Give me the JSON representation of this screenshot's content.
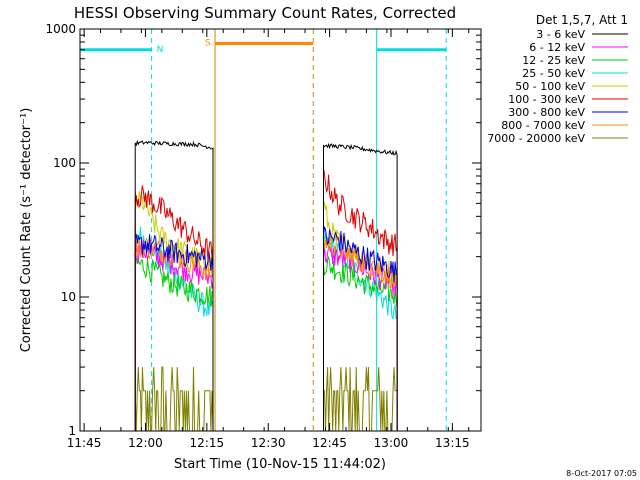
{
  "chart_data": {
    "type": "line",
    "title": "HESSI Observing Summary Count Rates, Corrected",
    "xlabel": "Start Time (10-Nov-15 11:44:02)",
    "ylabel": "Corrected Count Rate (s⁻¹ detector⁻¹)",
    "yscale": "log",
    "ylim": [
      1,
      1000
    ],
    "xlim_minutes": [
      0,
      98
    ],
    "x_ticks": [
      {
        "label": "11:45",
        "minute": 1
      },
      {
        "label": "12:00",
        "minute": 16
      },
      {
        "label": "12:15",
        "minute": 31
      },
      {
        "label": "12:30",
        "minute": 46
      },
      {
        "label": "12:45",
        "minute": 61
      },
      {
        "label": "13:00",
        "minute": 76
      },
      {
        "label": "13:15",
        "minute": 91
      }
    ],
    "y_ticks": [
      {
        "label": "1",
        "value": 1
      },
      {
        "label": "10",
        "value": 10
      },
      {
        "label": "100",
        "value": 100
      },
      {
        "label": "1000",
        "value": 1000
      }
    ],
    "legend": {
      "title": "Det 1,5,7, Att 1",
      "position": "right",
      "entries": [
        {
          "label": "3 - 6 keV",
          "color": "#000000"
        },
        {
          "label": "6 - 12 keV",
          "color": "#ff00ff"
        },
        {
          "label": "12 - 25 keV",
          "color": "#00cc00"
        },
        {
          "label": "25 - 50 keV",
          "color": "#00dddd"
        },
        {
          "label": "50 - 100 keV",
          "color": "#cccc00"
        },
        {
          "label": "100 - 300 keV",
          "color": "#dd0000"
        },
        {
          "label": "300 - 800 keV",
          "color": "#0000dd"
        },
        {
          "label": "800 - 7000 keV",
          "color": "#ff8800"
        },
        {
          "label": "7000 - 20000 keV",
          "color": "#808000"
        }
      ]
    },
    "orbit_flags": [
      {
        "label": "N",
        "color": "#00dddd",
        "start_minute": 0,
        "end_minute": 17.5,
        "y": 700
      },
      {
        "label": "S",
        "color": "#ff8800",
        "start_minute": 33,
        "end_minute": 57,
        "y": 780
      },
      {
        "label": "",
        "color": "#00dddd",
        "start_minute": 72.5,
        "end_minute": 89.5,
        "y": 700
      }
    ],
    "vertical_markers": [
      {
        "minute": 0,
        "color": "#00dddd",
        "style": "solid"
      },
      {
        "minute": 17.5,
        "color": "#00dddd",
        "style": "dashed"
      },
      {
        "minute": 33,
        "color": "#cc8800",
        "style": "solid"
      },
      {
        "minute": 57,
        "color": "#cc8800",
        "style": "dashed"
      },
      {
        "minute": 72.5,
        "color": "#00dddd",
        "style": "solid"
      },
      {
        "minute": 89.5,
        "color": "#00dddd",
        "style": "dashed"
      }
    ],
    "intervals": [
      {
        "start_minute": 13.5,
        "end_minute": 32.5
      },
      {
        "start_minute": 59.5,
        "end_minute": 77.5
      }
    ],
    "series": [
      {
        "name": "3 - 6 keV",
        "color": "#000000",
        "points": [
          [
            13.5,
            140
          ],
          [
            16,
            142
          ],
          [
            20,
            140
          ],
          [
            24,
            139
          ],
          [
            28,
            138
          ],
          [
            32.5,
            130
          ],
          [
            59.5,
            135
          ],
          [
            63,
            133
          ],
          [
            67,
            130
          ],
          [
            71,
            125
          ],
          [
            75,
            120
          ],
          [
            77.5,
            118
          ]
        ]
      },
      {
        "name": "6 - 12 keV",
        "color": "#ff00ff",
        "points": [
          [
            13.5,
            22
          ],
          [
            16,
            22
          ],
          [
            20,
            19
          ],
          [
            24,
            17
          ],
          [
            28,
            15
          ],
          [
            32.5,
            14
          ],
          [
            59.5,
            21
          ],
          [
            63,
            20
          ],
          [
            67,
            18
          ],
          [
            71,
            15
          ],
          [
            75,
            13
          ],
          [
            77.5,
            12
          ]
        ]
      },
      {
        "name": "12 - 25 keV",
        "color": "#00cc00",
        "points": [
          [
            13.5,
            18
          ],
          [
            16,
            17
          ],
          [
            20,
            14
          ],
          [
            24,
            12
          ],
          [
            28,
            11
          ],
          [
            32.5,
            10
          ],
          [
            59.5,
            18
          ],
          [
            63,
            16
          ],
          [
            67,
            14
          ],
          [
            71,
            12
          ],
          [
            75,
            11
          ],
          [
            77.5,
            10
          ]
        ]
      },
      {
        "name": "25 - 50 keV",
        "color": "#00dddd",
        "points": [
          [
            13.5,
            30
          ],
          [
            16,
            27
          ],
          [
            20,
            19
          ],
          [
            24,
            14
          ],
          [
            28,
            10
          ],
          [
            32.5,
            7.5
          ],
          [
            59.5,
            26
          ],
          [
            63,
            22
          ],
          [
            67,
            16
          ],
          [
            71,
            12
          ],
          [
            75,
            9
          ],
          [
            77.5,
            7
          ]
        ]
      },
      {
        "name": "50 - 100 keV",
        "color": "#cccc00",
        "points": [
          [
            13.5,
            52
          ],
          [
            16,
            50
          ],
          [
            17.5,
            38
          ],
          [
            20,
            28
          ],
          [
            24,
            23
          ],
          [
            28,
            20
          ],
          [
            32.5,
            18
          ],
          [
            59.5,
            50
          ],
          [
            61,
            32
          ],
          [
            63,
            26
          ],
          [
            67,
            22
          ],
          [
            71,
            18
          ],
          [
            75,
            16
          ],
          [
            77.5,
            14
          ]
        ]
      },
      {
        "name": "100 - 300 keV",
        "color": "#dd0000",
        "points": [
          [
            13.5,
            57
          ],
          [
            16,
            56
          ],
          [
            20,
            45
          ],
          [
            24,
            35
          ],
          [
            28,
            27
          ],
          [
            32.5,
            21
          ],
          [
            59.5,
            80
          ],
          [
            63,
            50
          ],
          [
            67,
            40
          ],
          [
            71,
            33
          ],
          [
            75,
            26
          ],
          [
            77.5,
            24
          ]
        ]
      },
      {
        "name": "300 - 800 keV",
        "color": "#0000dd",
        "points": [
          [
            13.5,
            24
          ],
          [
            16,
            25
          ],
          [
            20,
            23
          ],
          [
            24,
            21
          ],
          [
            28,
            20
          ],
          [
            32.5,
            19
          ],
          [
            59.5,
            28
          ],
          [
            63,
            27
          ],
          [
            67,
            22
          ],
          [
            71,
            19
          ],
          [
            75,
            17
          ],
          [
            77.5,
            15
          ]
        ]
      },
      {
        "name": "800 - 7000 keV",
        "color": "#ff8800",
        "points": [
          [
            13.5,
            23
          ],
          [
            16,
            24
          ],
          [
            20,
            22
          ],
          [
            24,
            20
          ],
          [
            28,
            18
          ],
          [
            32.5,
            15
          ],
          [
            59.5,
            26
          ],
          [
            63,
            24
          ],
          [
            67,
            20
          ],
          [
            71,
            17
          ],
          [
            75,
            15
          ],
          [
            77.5,
            13
          ]
        ]
      },
      {
        "name": "7000 - 20000 keV",
        "color": "#808000",
        "points": [
          [
            13.5,
            2
          ],
          [
            16,
            2
          ],
          [
            20,
            1.9
          ],
          [
            24,
            1.8
          ],
          [
            28,
            1.6
          ],
          [
            32.5,
            1.5
          ],
          [
            59.5,
            2
          ],
          [
            63,
            2
          ],
          [
            67,
            1.9
          ],
          [
            71,
            1.6
          ],
          [
            75,
            1.4
          ],
          [
            77.5,
            1.3
          ]
        ]
      }
    ],
    "grid": false
  },
  "footer": {
    "timestamp": "8-Oct-2017 07:05"
  }
}
